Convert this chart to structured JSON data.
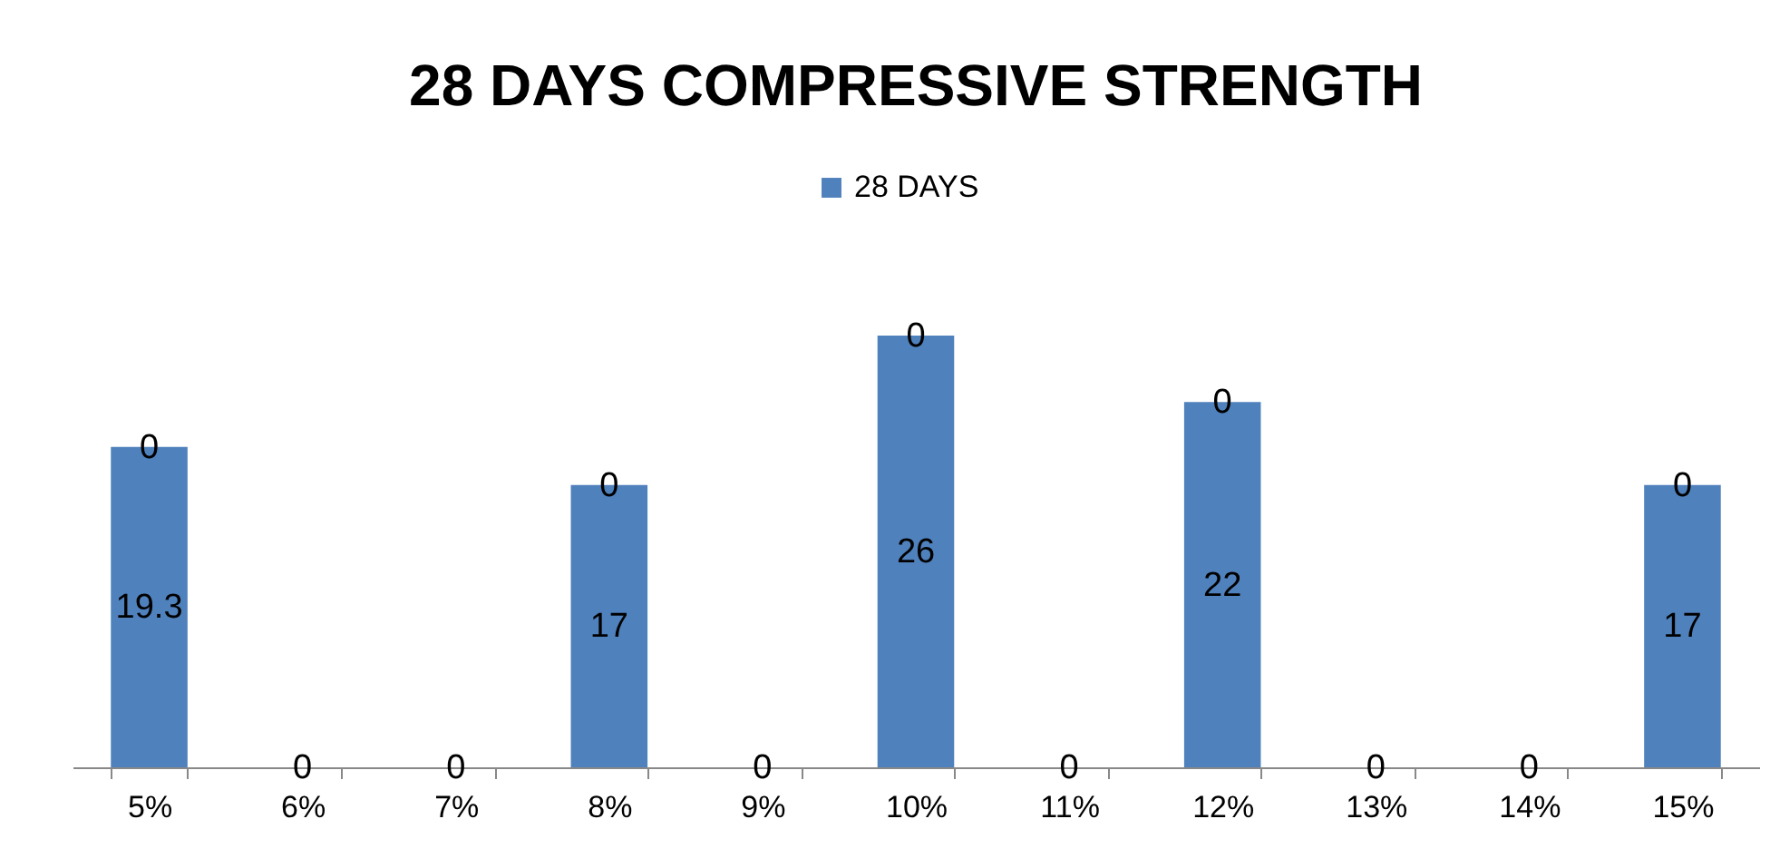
{
  "chart_data": {
    "type": "bar",
    "title": "28 DAYS COMPRESSIVE STRENGTH",
    "categories": [
      "5%",
      "6%",
      "7%",
      "8%",
      "9%",
      "10%",
      "11%",
      "12%",
      "13%",
      "14%",
      "15%"
    ],
    "stacked": true,
    "legend": "top",
    "grid": false,
    "tick_labels": "x",
    "series": [
      {
        "name": "28 DAYS",
        "color": "#4f81bd",
        "values": [
          19.3,
          0,
          0,
          17,
          0,
          26,
          0,
          22,
          0,
          0,
          17
        ],
        "value_labels": [
          "19.3",
          null,
          null,
          "17",
          null,
          "26",
          null,
          "22",
          null,
          null,
          "17"
        ]
      },
      {
        "color": "#4f81bd",
        "values": [
          0,
          0,
          0,
          0,
          0,
          0,
          0,
          0,
          0,
          0,
          0
        ],
        "value_labels": [
          "0",
          "0",
          "0",
          "0",
          "0",
          "0",
          "0",
          "0",
          "0",
          "0",
          "0"
        ]
      }
    ]
  }
}
